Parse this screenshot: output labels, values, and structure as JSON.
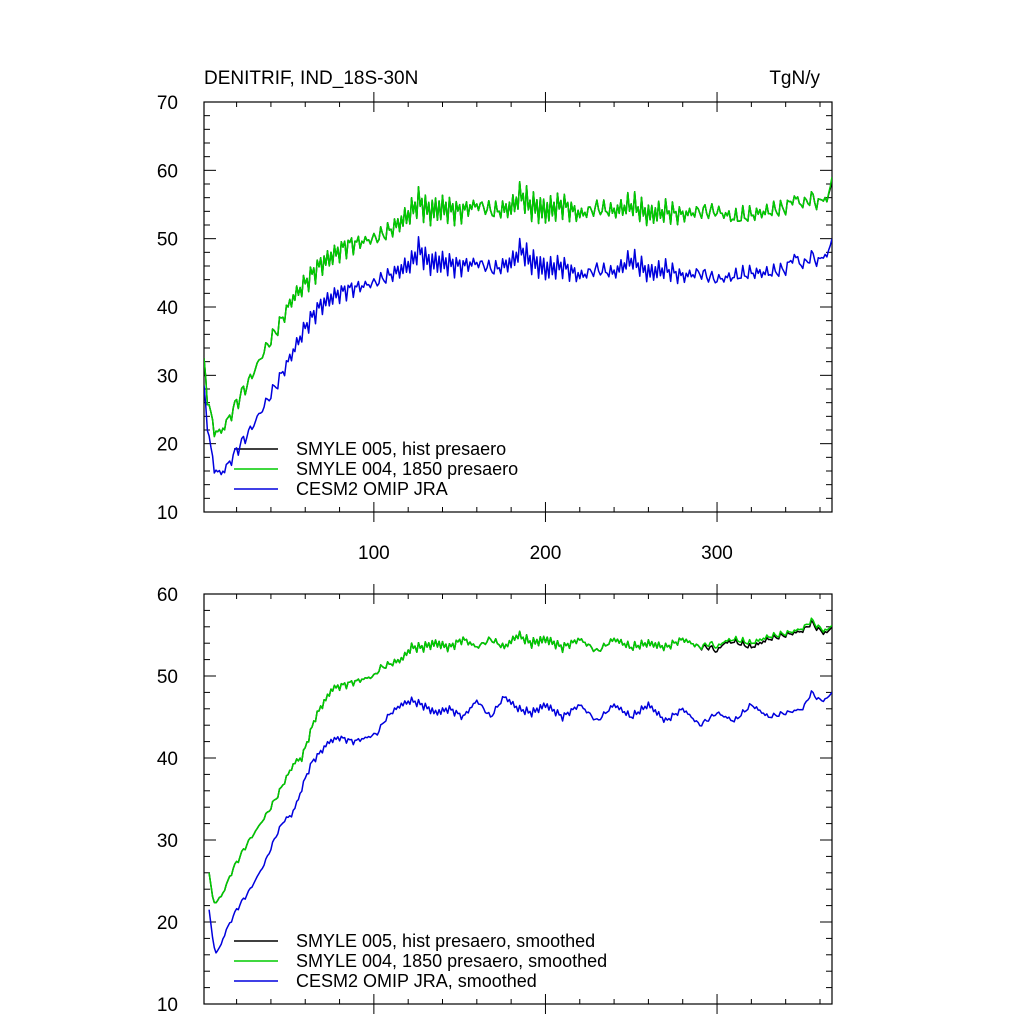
{
  "chart_data": [
    {
      "type": "line",
      "title": "DENITRIF, IND_18S-30N",
      "units": "TgN/y",
      "xlabel": "",
      "ylabel": "",
      "xlim": [
        1,
        367
      ],
      "ylim": [
        10,
        70
      ],
      "xticks": [
        100,
        200,
        300
      ],
      "yticks": [
        10,
        20,
        30,
        40,
        50,
        60,
        70
      ],
      "grid": false,
      "legend_position": "bottom-left",
      "series": [
        {
          "name": "SMYLE 005, hist presaero",
          "color": "#000000",
          "keypoints": {
            "x": [
              1,
              3,
              5,
              7,
              10,
              14,
              20,
              28,
              36,
              44,
              52,
              60,
              68,
              76,
              84,
              92,
              100,
              108,
              116,
              122,
              126,
              132,
              140,
              150,
              160,
              170,
              180,
              186,
              190,
              200,
              210,
              220,
              230,
              240,
              250,
              260,
              270,
              280,
              290,
              300,
              310,
              320,
              330,
              340,
              345,
              350,
              355,
              360,
              362,
              364,
              367
            ],
            "y": [
              32.5,
              27,
              24,
              22,
              21.5,
              23,
              26,
              29.5,
              33.5,
              37,
              41,
              43.5,
              46,
              47.5,
              49,
              49.5,
              50,
              51,
              52.5,
              54,
              55.5,
              54,
              54.5,
              54,
              55,
              54,
              54.5,
              56.5,
              55,
              54,
              55,
              53.5,
              54.5,
              54,
              55,
              53.5,
              54,
              53.5,
              54,
              54,
              53,
              53.5,
              54,
              54.5,
              56,
              55,
              56,
              55,
              56.5,
              55,
              58.5
            ]
          },
          "noise": [
            0.4,
            1.4,
            1.5
          ]
        },
        {
          "name": "SMYLE 004, 1850 presaero",
          "color": "#00cc00",
          "keypoints": {
            "x": [
              1,
              3,
              5,
              7,
              10,
              14,
              20,
              28,
              36,
              44,
              52,
              60,
              68,
              76,
              84,
              92,
              100,
              108,
              116,
              122,
              126,
              132,
              140,
              150,
              160,
              170,
              180,
              186,
              190,
              200,
              210,
              220,
              230,
              240,
              250,
              260,
              270,
              280,
              290,
              300,
              310,
              320,
              330,
              340,
              345,
              350,
              355,
              360,
              362,
              364,
              367
            ],
            "y": [
              32.5,
              27,
              24,
              22,
              21.5,
              23,
              26,
              29.5,
              33.5,
              37,
              41,
              43.5,
              46,
              47.5,
              49,
              49.5,
              50,
              51,
              52.5,
              54,
              55.5,
              54,
              54.5,
              54,
              55,
              54,
              54.5,
              56.5,
              55,
              54,
              55,
              53.5,
              54.5,
              54,
              55,
              53.5,
              54,
              53.5,
              54,
              54,
              53,
              53.5,
              54,
              54.5,
              56,
              55,
              56,
              55,
              56.5,
              55,
              59
            ]
          },
          "noise": [
            0.4,
            1.4,
            1.5
          ]
        },
        {
          "name": "CESM2 OMIP JRA",
          "color": "#0000dd",
          "keypoints": {
            "x": [
              1,
              3,
              5,
              7,
              10,
              14,
              20,
              28,
              36,
              44,
              52,
              60,
              68,
              76,
              84,
              92,
              100,
              108,
              116,
              122,
              126,
              132,
              140,
              150,
              160,
              170,
              180,
              186,
              190,
              200,
              210,
              220,
              230,
              240,
              250,
              260,
              270,
              280,
              290,
              300,
              310,
              320,
              330,
              340,
              345,
              350,
              355,
              360,
              362,
              364,
              367
            ],
            "y": [
              28.5,
              23,
              19,
              16.5,
              15.5,
              16.5,
              19,
              22,
              25.5,
              29,
              33,
              37,
              40,
              41.5,
              42.5,
              43,
              43.5,
              44.5,
              45.5,
              46.5,
              48.5,
              46.5,
              46.5,
              46,
              46.5,
              45.5,
              46.5,
              48.5,
              47,
              45.5,
              46,
              44.5,
              45.5,
              45,
              47,
              45,
              45.5,
              44.5,
              45,
              44,
              44.5,
              45,
              45,
              45.5,
              47.5,
              46,
              47.5,
              46.5,
              48,
              47,
              50
            ]
          },
          "noise": [
            0.3,
            1.2,
            1.3
          ]
        }
      ]
    },
    {
      "type": "line",
      "title": "",
      "units": "",
      "xlabel": "",
      "ylabel": "",
      "xlim": [
        1,
        367
      ],
      "ylim": [
        10,
        60
      ],
      "xticks": [
        100,
        200,
        300
      ],
      "yticks": [
        10,
        20,
        30,
        40,
        50,
        60
      ],
      "grid": false,
      "legend_position": "bottom-left",
      "series": [
        {
          "name": "SMYLE 005, hist presaero, smoothed",
          "color": "#000000",
          "keypoints": {
            "x": [
              4,
              6,
              8,
              12,
              18,
              26,
              34,
              40,
              44,
              50,
              54,
              58,
              62,
              66,
              70,
              76,
              84,
              92,
              100,
              104,
              110,
              116,
              122,
              128,
              136,
              144,
              152,
              160,
              168,
              176,
              184,
              192,
              200,
              210,
              220,
              230,
              240,
              250,
              260,
              270,
              280,
              290,
              296,
              300,
              304,
              310,
              320,
              330,
              340,
              350,
              355,
              360,
              364,
              367
            ],
            "y": [
              26,
              23,
              22.3,
              23.5,
              26.5,
              29.5,
              32,
              34,
              35.5,
              38,
              39.5,
              40,
              42.5,
              45,
              46.5,
              48.5,
              49,
              49.5,
              50,
              51,
              51.5,
              52,
              53.5,
              53.5,
              54,
              53.5,
              54.5,
              53.5,
              54.5,
              53.5,
              55,
              54,
              54.5,
              53.5,
              54.5,
              53,
              54.5,
              53.5,
              54,
              53.5,
              54.5,
              53.5,
              53.5,
              53,
              54,
              54.2,
              53.5,
              54.5,
              55,
              55.5,
              56.5,
              55.5,
              55.2,
              56
            ]
          },
          "noise": [
            0.15,
            0.35,
            0.4
          ]
        },
        {
          "name": "SMYLE 004, 1850 presaero, smoothed",
          "color": "#00cc00",
          "keypoints": {
            "x": [
              4,
              6,
              8,
              12,
              18,
              26,
              34,
              40,
              44,
              50,
              54,
              58,
              62,
              66,
              70,
              76,
              84,
              92,
              100,
              104,
              110,
              116,
              122,
              128,
              136,
              144,
              152,
              160,
              168,
              176,
              184,
              192,
              200,
              210,
              220,
              230,
              240,
              250,
              260,
              270,
              280,
              290,
              296,
              300,
              304,
              310,
              320,
              330,
              340,
              350,
              355,
              360,
              364,
              367
            ],
            "y": [
              26,
              23,
              22.3,
              23.5,
              26.5,
              29.5,
              32,
              34,
              35.5,
              38,
              39.5,
              40,
              42.5,
              45,
              46.5,
              48.5,
              49,
              49.5,
              50,
              51,
              51.5,
              52,
              53.5,
              53.5,
              54,
              53.5,
              54.5,
              53.5,
              54.5,
              53.5,
              55,
              54,
              54.5,
              53.5,
              54.5,
              53,
              54.5,
              53.5,
              54,
              53.5,
              54.5,
              53.5,
              54,
              53.5,
              54.2,
              54.5,
              54,
              54.8,
              55.2,
              55.8,
              56.8,
              55.8,
              55.5,
              56.2
            ]
          },
          "noise": [
            0.15,
            0.35,
            0.4
          ]
        },
        {
          "name": "CESM2 OMIP JRA, smoothed",
          "color": "#0000dd",
          "keypoints": {
            "x": [
              4,
              6,
              8,
              10,
              14,
              20,
              28,
              36,
              44,
              48,
              52,
              56,
              60,
              64,
              68,
              74,
              80,
              88,
              96,
              102,
              106,
              110,
              116,
              122,
              128,
              136,
              144,
              152,
              160,
              168,
              176,
              184,
              192,
              200,
              210,
              220,
              230,
              240,
              250,
              260,
              270,
              280,
              290,
              300,
              310,
              320,
              330,
              340,
              350,
              355,
              360,
              364,
              367
            ],
            "y": [
              21.5,
              18,
              16.2,
              16.8,
              19,
              21.5,
              24,
              27,
              31,
              32.5,
              33,
              35,
              37.5,
              39.5,
              40.5,
              42,
              42.5,
              42,
              42.5,
              43,
              44.5,
              45.5,
              46.5,
              47,
              46.5,
              45.5,
              46,
              45,
              47,
              45,
              47.5,
              46,
              45.5,
              46.5,
              45,
              46.5,
              44.5,
              46.5,
              45,
              46.5,
              44.5,
              46,
              44,
              45.5,
              44.5,
              46.5,
              45,
              45.5,
              46,
              48,
              47,
              47.2,
              48
            ]
          },
          "noise": [
            0.12,
            0.3,
            0.3
          ]
        }
      ]
    }
  ]
}
